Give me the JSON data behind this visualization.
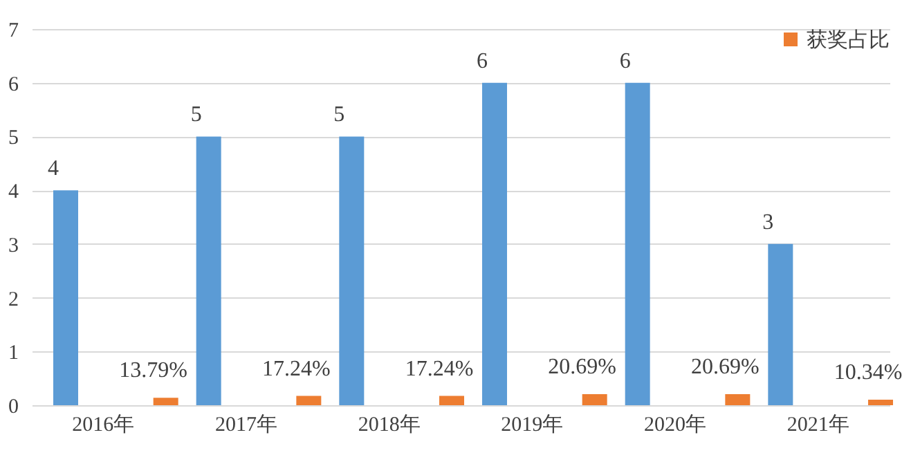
{
  "chart_data": {
    "type": "bar",
    "categories": [
      "2016年",
      "2017年",
      "2018年",
      "2019年",
      "2020年",
      "2021年"
    ],
    "series": [
      {
        "color": "#5b9bd5",
        "values": [
          4,
          5,
          5,
          6,
          6,
          3
        ],
        "value_labels": [
          "4",
          "5",
          "5",
          "6",
          "6",
          "3"
        ]
      },
      {
        "name": "获奖占比",
        "color": "#ed7d31",
        "values": [
          0.1379,
          0.1724,
          0.1724,
          0.2069,
          0.2069,
          0.1034
        ],
        "value_labels": [
          "13.79%",
          "17.24%",
          "17.24%",
          "20.69%",
          "20.69%",
          "10.34%"
        ]
      }
    ],
    "ylim": [
      0,
      7
    ],
    "yticks": [
      0,
      1,
      2,
      3,
      4,
      5,
      6,
      7
    ],
    "grid": "y",
    "legend": "top right"
  }
}
